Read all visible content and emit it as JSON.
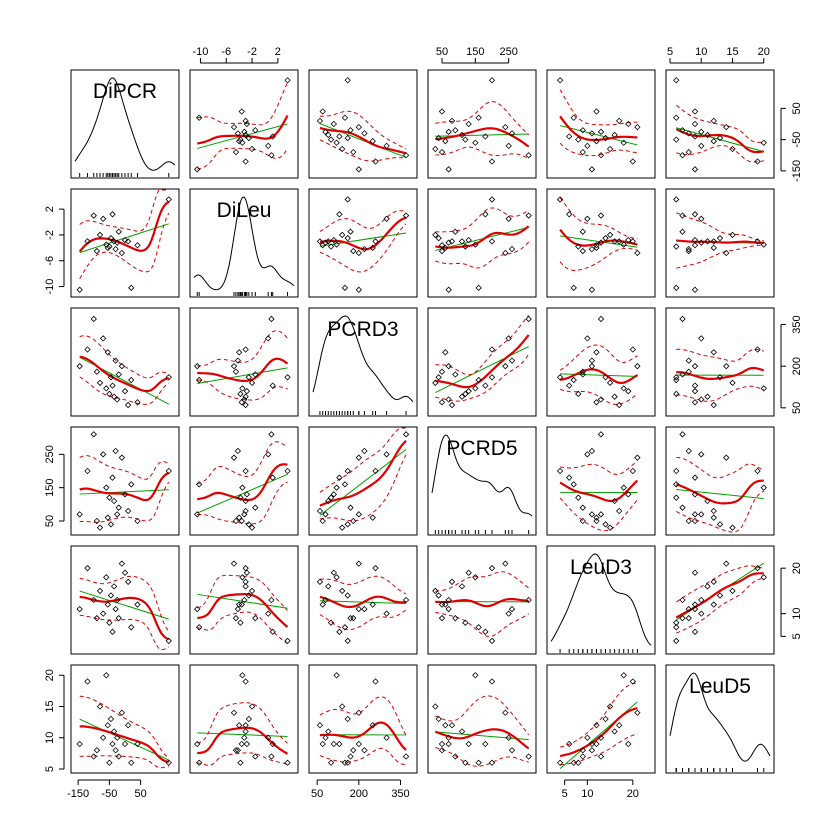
{
  "chart_data": {
    "type": "scatter",
    "subtype": "scatterplot-matrix",
    "colors": {
      "points": "#000000",
      "linear_fit": "#00a000",
      "smoother": "#e00000",
      "smoother_band": "#e00000",
      "density": "#000000",
      "frame": "#000000"
    },
    "variables": [
      {
        "name": "DiPCR",
        "range": [
          -160,
          160
        ],
        "ticks": [
          -150,
          -50,
          50
        ],
        "tick_labels": [
          "-150",
          "-50",
          "50"
        ]
      },
      {
        "name": "DiLeu",
        "range": [
          -11,
          4.5
        ],
        "ticks": [
          -10,
          -6,
          -2,
          2
        ],
        "tick_labels": [
          "-10",
          "-6",
          "-2",
          "2"
        ]
      },
      {
        "name": "PCRD3",
        "range": [
          35,
          395
        ],
        "ticks": [
          50,
          200,
          350
        ],
        "tick_labels": [
          "50",
          "200",
          "350"
        ]
      },
      {
        "name": "PCRD5",
        "range": [
          20,
          320
        ],
        "ticks": [
          50,
          150,
          250
        ],
        "tick_labels": [
          "50",
          "150",
          "250"
        ]
      },
      {
        "name": "LeuD3",
        "range": [
          2,
          24
        ],
        "ticks": [
          5,
          10,
          20
        ],
        "tick_labels": [
          "5",
          "10",
          "20"
        ]
      },
      {
        "name": "LeuD5",
        "range": [
          5,
          21
        ],
        "ticks": [
          5,
          10,
          15,
          20
        ],
        "tick_labels": [
          "5",
          "10",
          "15",
          "20"
        ]
      }
    ],
    "observations": {
      "DiPCR": [
        -145,
        -120,
        -100,
        -90,
        -80,
        -70,
        -60,
        -55,
        -50,
        -45,
        -40,
        -35,
        -30,
        -25,
        -20,
        -10,
        0,
        10,
        20,
        40,
        140
      ],
      "DiLeu": [
        -10.5,
        -3.0,
        1.0,
        -4.5,
        -2.0,
        0.5,
        -3.5,
        -4.0,
        -3.8,
        -2.5,
        1.2,
        -3.0,
        -4.2,
        -3.2,
        -1.5,
        -4.8,
        -2.8,
        -3.0,
        -10.2,
        -3.6,
        3.5
      ],
      "PCRD3": [
        200,
        260,
        370,
        180,
        140,
        300,
        120,
        250,
        100,
        160,
        130,
        90,
        220,
        80,
        170,
        200,
        110,
        60,
        150,
        70,
        160
      ],
      "PCRD5": [
        70,
        200,
        310,
        50,
        30,
        250,
        150,
        60,
        120,
        40,
        180,
        110,
        260,
        70,
        90,
        240,
        130,
        80,
        160,
        50,
        200
      ],
      "LeuD3": [
        11,
        20,
        13,
        9,
        15,
        10,
        18,
        12,
        8,
        14,
        6,
        16,
        11,
        13,
        9,
        21,
        19,
        17,
        7,
        12,
        4
      ],
      "LeuD5": [
        9,
        19,
        7,
        8,
        15,
        10,
        20,
        12,
        6,
        13,
        9,
        11,
        8,
        10,
        7,
        14,
        9,
        12,
        6,
        9,
        6
      ]
    }
  }
}
